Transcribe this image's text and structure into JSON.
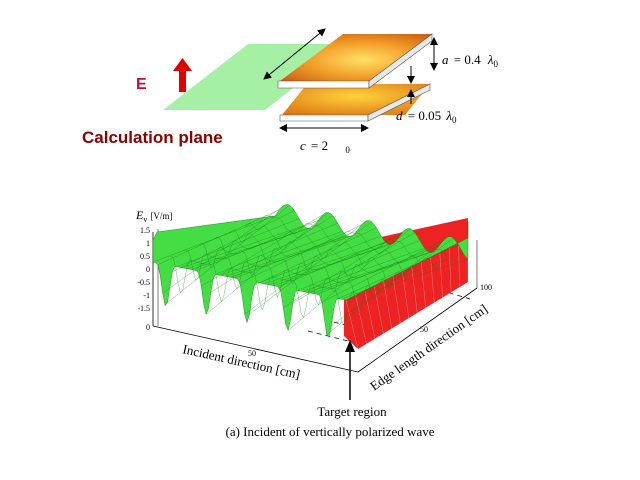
{
  "top_figure": {
    "e_label": "E",
    "calc_plane_label": "Calculation plane",
    "a_symbol": "a",
    "a_value": "= 0.4",
    "d_symbol": "d",
    "d_value": "= 0.05",
    "c_symbol": "c",
    "c_value": "= 2",
    "lambda": "λ",
    "lambda_sub": "0",
    "colors": {
      "plane": "#a6f0a6",
      "arrow": "#e00000",
      "plate_light": "#ffd23a",
      "plate_dark": "#d86a12"
    }
  },
  "plot": {
    "z_label": "E",
    "z_label_sub": "v",
    "z_unit": "[V/m]",
    "z_ticks": [
      "1.5",
      "1",
      "0.5",
      "0",
      "-0.5",
      "-1",
      "-1.5"
    ],
    "x_label": "Incident direction [cm]",
    "x_ticks": [
      "0",
      "50"
    ],
    "y_label": "Edge length direction [cm]",
    "y_ticks": [
      "50",
      "100"
    ],
    "colors": {
      "surface": "#44dd44",
      "mesh": "#0f7a0f",
      "target_surface": "#ee2222"
    }
  },
  "target_label": "Target region",
  "caption": "(a) Incident of vertically polarized wave"
}
